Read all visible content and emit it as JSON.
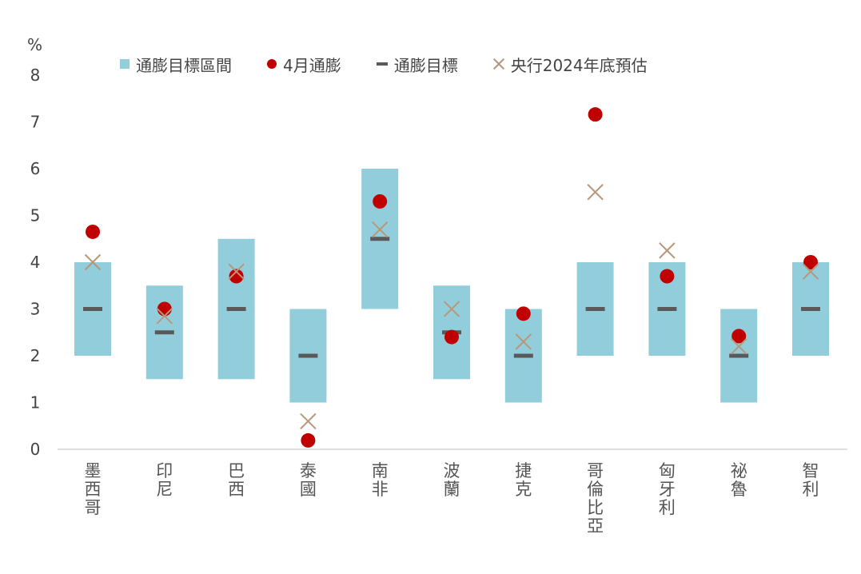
{
  "chart_data": {
    "type": "range-marker",
    "ylabel": "%",
    "ylim": [
      0,
      8
    ],
    "yticks": [
      0,
      1,
      2,
      3,
      4,
      5,
      6,
      7,
      8
    ],
    "grid": false,
    "legend_position": "top",
    "categories": [
      "墨西哥",
      "印尼",
      "巴西",
      "泰國",
      "南非",
      "波蘭",
      "捷克",
      "哥倫比亞",
      "匈牙利",
      "祕魯",
      "智利"
    ],
    "series": [
      {
        "name": "通膨目標區間",
        "kind": "range",
        "color": "#92cddc",
        "low": [
          2,
          1.5,
          1.5,
          1,
          3,
          1.5,
          1,
          2,
          2,
          1,
          2
        ],
        "high": [
          4,
          3.5,
          4.5,
          3,
          6,
          3.5,
          3,
          4,
          4,
          3,
          4
        ]
      },
      {
        "name": "4月通膨",
        "kind": "dot",
        "color": "#c00000",
        "values": [
          4.65,
          3.0,
          3.7,
          0.19,
          5.3,
          2.4,
          2.9,
          7.16,
          3.7,
          2.42,
          4.0
        ]
      },
      {
        "name": "通膨目標",
        "kind": "dash",
        "color": "#595959",
        "values": [
          3,
          2.5,
          3,
          2,
          4.5,
          2.5,
          2,
          3,
          3,
          2,
          3
        ]
      },
      {
        "name": "央行2024年底預估",
        "kind": "cross",
        "color": "#b8977a",
        "values": [
          4.0,
          2.85,
          3.8,
          0.6,
          4.7,
          3.0,
          2.3,
          5.5,
          4.25,
          2.2,
          3.8
        ]
      }
    ]
  }
}
